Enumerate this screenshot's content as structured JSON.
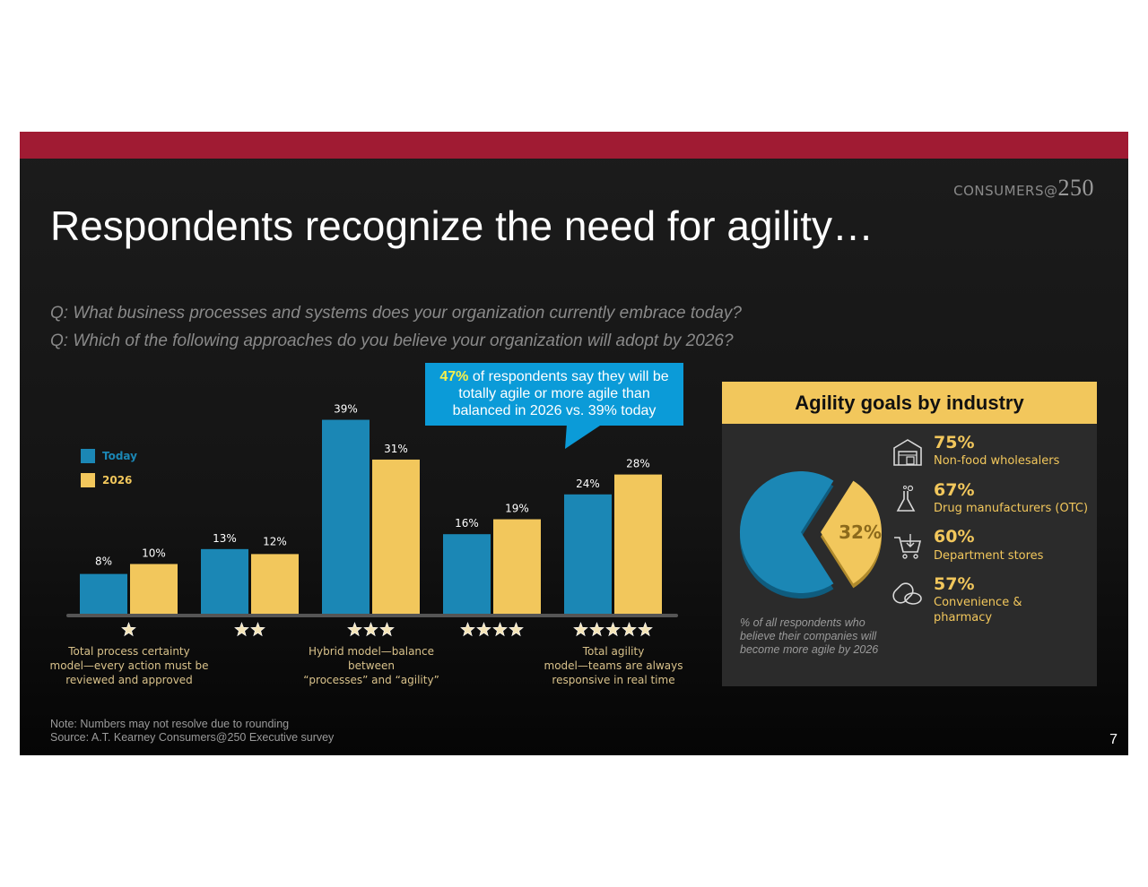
{
  "slide": {
    "brand": {
      "text": "CONSUMERS@",
      "number": "250"
    },
    "title": "Respondents recognize the need for agility…",
    "questions": [
      "Q: What business processes and systems does your organization currently embrace today?",
      "Q: Which of the following approaches do you believe your organization will adopt by 2026?"
    ],
    "callout": {
      "highlight": "47%",
      "text": " of respondents say they will be totally agile or more agile than balanced in 2026 vs. 39% today"
    },
    "note": "Note: Numbers may not resolve due to rounding",
    "source": "Source: A.T. Kearney Consumers@250 Executive survey",
    "page_number": "7"
  },
  "chart_data": [
    {
      "type": "bar",
      "categories": [
        "1 star",
        "2 stars",
        "3 stars",
        "4 stars",
        "5 stars"
      ],
      "star_counts": [
        1,
        2,
        3,
        4,
        5
      ],
      "category_labels": [
        [
          "Total process certainty",
          "model—every action must be",
          "reviewed and approved"
        ],
        [],
        [
          "Hybrid model—balance",
          "between",
          "“processes” and “agility”"
        ],
        [],
        [
          "Total agility",
          "model—teams are always",
          "responsive in real time"
        ]
      ],
      "series": [
        {
          "name": "Today",
          "values": [
            8,
            13,
            39,
            16,
            24
          ],
          "color": "#1b87b5"
        },
        {
          "name": "2026",
          "values": [
            10,
            12,
            31,
            19,
            28
          ],
          "color": "#f2c75c"
        }
      ],
      "value_suffix": "%",
      "ylim": [
        0,
        40
      ],
      "legend": "top-left",
      "grid": false
    },
    {
      "type": "pie",
      "title": "Agility goals by industry",
      "slices": [
        {
          "label": "32%",
          "value": 32,
          "color": "#f2c75c",
          "exploded": true
        },
        {
          "label": "",
          "value": 68,
          "color": "#1b87b5"
        }
      ],
      "caption": "% of all respondents who believe their companies will become more agile  by 2026",
      "industries": [
        {
          "pct": "75%",
          "name": "Non-food wholesalers",
          "icon": "warehouse-icon"
        },
        {
          "pct": "67%",
          "name": "Drug manufacturers (OTC)",
          "icon": "flask-icon"
        },
        {
          "pct": "60%",
          "name": "Department stores",
          "icon": "shopping-cart-icon"
        },
        {
          "pct": "57%",
          "name": "Convenience & pharmacy",
          "icon": "pills-icon"
        }
      ]
    }
  ]
}
